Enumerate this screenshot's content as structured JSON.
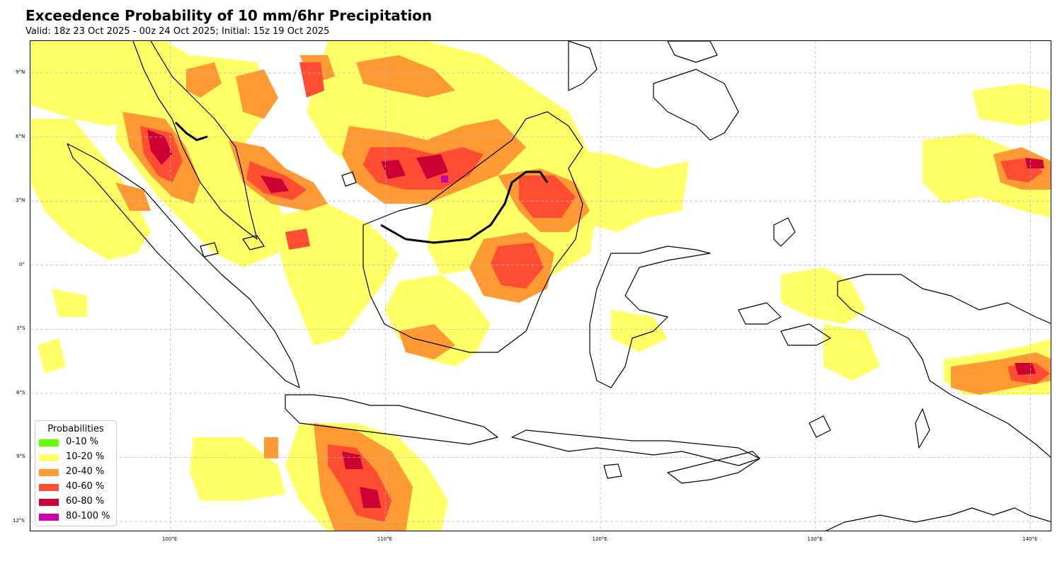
{
  "title": "Exceedence Probability of 10 mm/6hr Precipitation",
  "subtitle": "Valid: 18z 23 Oct 2025 - 00z 24 Oct 2025; Initial: 15z 19 Oct 2025",
  "axes": {
    "lon_ticks": [
      "100°E",
      "110°E",
      "120°E",
      "130°E",
      "140°E"
    ],
    "lat_ticks": [
      "9°N",
      "6°N",
      "3°N",
      "0°",
      "3°S",
      "6°S",
      "9°S",
      "12°S"
    ],
    "lon_range": [
      93.5,
      141.0
    ],
    "lat_range": [
      -12.5,
      10.5
    ],
    "grid": "dashed"
  },
  "legend": {
    "title": "Probabilities",
    "position": "bottom-left",
    "items": [
      {
        "label": "0-10 %",
        "color": "#66ff00"
      },
      {
        "label": "10-20 %",
        "color": "#ffff66"
      },
      {
        "label": "20-40 %",
        "color": "#ff9933"
      },
      {
        "label": "40-60 %",
        "color": "#ff4d33"
      },
      {
        "label": "60-80 %",
        "color": "#cc0033"
      },
      {
        "label": "80-100 %",
        "color": "#cc00aa"
      }
    ]
  }
}
